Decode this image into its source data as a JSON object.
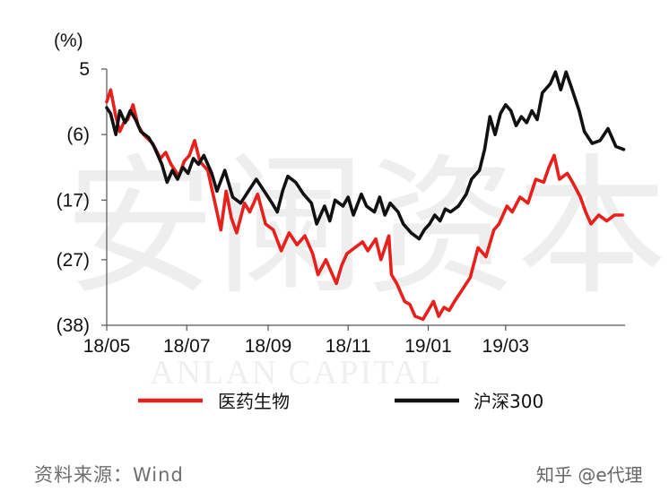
{
  "chart_data": {
    "type": "line",
    "unit_label": "(%)",
    "ylim": [
      -38,
      5
    ],
    "y_ticks": [
      5,
      -6,
      -17,
      -27,
      -38
    ],
    "y_tick_labels": [
      "5",
      "(6)",
      "(17)",
      "(27)",
      "(38)"
    ],
    "x_range": [
      "2018-05-01",
      "2019-05-31"
    ],
    "x_ticks": [
      "2018-05-01",
      "2018-07-01",
      "2018-09-01",
      "2018-11-01",
      "2019-01-01",
      "2019-03-01"
    ],
    "x_tick_labels": [
      "18/05",
      "18/07",
      "18/09",
      "18/11",
      "19/01",
      "19/03"
    ],
    "grid": false,
    "legend_position": "bottom",
    "series": [
      {
        "name": "医药生物",
        "color": "#e8201c",
        "points": [
          [
            "2018-05-01",
            -0.5
          ],
          [
            "2018-05-04",
            1.5
          ],
          [
            "2018-05-08",
            -3.0
          ],
          [
            "2018-05-11",
            -5.5
          ],
          [
            "2018-05-14",
            -4.0
          ],
          [
            "2018-05-17",
            -3.5
          ],
          [
            "2018-05-21",
            -1.0
          ],
          [
            "2018-05-25",
            -4.5
          ],
          [
            "2018-05-29",
            -6.0
          ],
          [
            "2018-06-05",
            -7.5
          ],
          [
            "2018-06-11",
            -10.0
          ],
          [
            "2018-06-15",
            -9.0
          ],
          [
            "2018-06-19",
            -11.0
          ],
          [
            "2018-06-25",
            -13.0
          ],
          [
            "2018-06-29",
            -10.5
          ],
          [
            "2018-07-03",
            -9.5
          ],
          [
            "2018-07-07",
            -7.0
          ],
          [
            "2018-07-11",
            -10.5
          ],
          [
            "2018-07-17",
            -12.0
          ],
          [
            "2018-07-23",
            -18.0
          ],
          [
            "2018-07-27",
            -22.0
          ],
          [
            "2018-07-31",
            -15.5
          ],
          [
            "2018-08-04",
            -20.0
          ],
          [
            "2018-08-08",
            -22.5
          ],
          [
            "2018-08-14",
            -17.5
          ],
          [
            "2018-08-18",
            -19.0
          ],
          [
            "2018-08-24",
            -16.0
          ],
          [
            "2018-08-30",
            -21.0
          ],
          [
            "2018-09-05",
            -22.0
          ],
          [
            "2018-09-11",
            -25.5
          ],
          [
            "2018-09-17",
            -22.5
          ],
          [
            "2018-09-23",
            -24.5
          ],
          [
            "2018-09-29",
            -23.0
          ],
          [
            "2018-10-05",
            -26.0
          ],
          [
            "2018-10-09",
            -29.5
          ],
          [
            "2018-10-15",
            -27.0
          ],
          [
            "2018-10-19",
            -29.0
          ],
          [
            "2018-10-23",
            -31.0
          ],
          [
            "2018-10-27",
            -28.0
          ],
          [
            "2018-10-31",
            -26.0
          ],
          [
            "2018-11-06",
            -25.0
          ],
          [
            "2018-11-12",
            -24.0
          ],
          [
            "2018-11-16",
            -25.5
          ],
          [
            "2018-11-22",
            -23.5
          ],
          [
            "2018-11-26",
            -27.0
          ],
          [
            "2018-12-02",
            -23.0
          ],
          [
            "2018-12-04",
            -29.5
          ],
          [
            "2018-12-08",
            -31.0
          ],
          [
            "2018-12-14",
            -34.0
          ],
          [
            "2018-12-18",
            -34.5
          ],
          [
            "2018-12-22",
            -36.5
          ],
          [
            "2018-12-28",
            -37.0
          ],
          [
            "2019-01-01",
            -35.5
          ],
          [
            "2019-01-05",
            -34.0
          ],
          [
            "2019-01-09",
            -36.5
          ],
          [
            "2019-01-13",
            -35.0
          ],
          [
            "2019-01-17",
            -35.5
          ],
          [
            "2019-01-21",
            -34.0
          ],
          [
            "2019-01-27",
            -32.0
          ],
          [
            "2019-02-02",
            -30.0
          ],
          [
            "2019-02-08",
            -25.0
          ],
          [
            "2019-02-14",
            -26.5
          ],
          [
            "2019-02-20",
            -22.0
          ],
          [
            "2019-02-24",
            -21.0
          ],
          [
            "2019-03-02",
            -18.0
          ],
          [
            "2019-03-06",
            -19.0
          ],
          [
            "2019-03-12",
            -16.5
          ],
          [
            "2019-03-18",
            -17.5
          ],
          [
            "2019-03-24",
            -13.5
          ],
          [
            "2019-03-30",
            -14.0
          ],
          [
            "2019-04-03",
            -11.5
          ],
          [
            "2019-04-07",
            -9.5
          ],
          [
            "2019-04-11",
            -13.5
          ],
          [
            "2019-04-17",
            -12.5
          ],
          [
            "2019-04-21",
            -14.0
          ],
          [
            "2019-04-27",
            -16.5
          ],
          [
            "2019-05-01",
            -19.0
          ],
          [
            "2019-05-05",
            -21.0
          ],
          [
            "2019-05-11",
            -19.5
          ],
          [
            "2019-05-17",
            -20.5
          ],
          [
            "2019-05-23",
            -19.5
          ],
          [
            "2019-05-29",
            -19.5
          ]
        ]
      },
      {
        "name": "沪深300",
        "color": "#111111",
        "points": [
          [
            "2018-05-01",
            -1.5
          ],
          [
            "2018-05-04",
            -2.5
          ],
          [
            "2018-05-08",
            -6.0
          ],
          [
            "2018-05-11",
            -2.0
          ],
          [
            "2018-05-15",
            -4.0
          ],
          [
            "2018-05-19",
            -2.0
          ],
          [
            "2018-05-23",
            -3.5
          ],
          [
            "2018-05-27",
            -5.5
          ],
          [
            "2018-06-02",
            -6.5
          ],
          [
            "2018-06-06",
            -8.0
          ],
          [
            "2018-06-12",
            -11.0
          ],
          [
            "2018-06-16",
            -14.0
          ],
          [
            "2018-06-20",
            -12.0
          ],
          [
            "2018-06-24",
            -13.5
          ],
          [
            "2018-06-28",
            -11.5
          ],
          [
            "2018-07-02",
            -12.5
          ],
          [
            "2018-07-06",
            -10.0
          ],
          [
            "2018-07-10",
            -11.0
          ],
          [
            "2018-07-14",
            -9.5
          ],
          [
            "2018-07-20",
            -12.5
          ],
          [
            "2018-07-24",
            -15.5
          ],
          [
            "2018-07-30",
            -12.0
          ],
          [
            "2018-08-05",
            -16.5
          ],
          [
            "2018-08-11",
            -17.5
          ],
          [
            "2018-08-17",
            -15.5
          ],
          [
            "2018-08-23",
            -13.5
          ],
          [
            "2018-08-29",
            -15.5
          ],
          [
            "2018-09-04",
            -17.5
          ],
          [
            "2018-09-08",
            -19.0
          ],
          [
            "2018-09-12",
            -15.5
          ],
          [
            "2018-09-16",
            -13.0
          ],
          [
            "2018-09-22",
            -14.0
          ],
          [
            "2018-09-28",
            -16.0
          ],
          [
            "2018-10-04",
            -17.5
          ],
          [
            "2018-10-08",
            -21.0
          ],
          [
            "2018-10-14",
            -18.0
          ],
          [
            "2018-10-18",
            -20.5
          ],
          [
            "2018-10-22",
            -17.0
          ],
          [
            "2018-10-28",
            -18.0
          ],
          [
            "2018-11-01",
            -16.5
          ],
          [
            "2018-11-05",
            -19.5
          ],
          [
            "2018-11-11",
            -16.0
          ],
          [
            "2018-11-15",
            -18.0
          ],
          [
            "2018-11-21",
            -19.0
          ],
          [
            "2018-11-25",
            -16.5
          ],
          [
            "2018-11-29",
            -19.5
          ],
          [
            "2018-12-03",
            -17.5
          ],
          [
            "2018-12-09",
            -19.0
          ],
          [
            "2018-12-13",
            -21.0
          ],
          [
            "2018-12-19",
            -22.5
          ],
          [
            "2018-12-25",
            -23.5
          ],
          [
            "2018-12-29",
            -22.0
          ],
          [
            "2019-01-02",
            -21.0
          ],
          [
            "2019-01-06",
            -19.5
          ],
          [
            "2019-01-10",
            -20.5
          ],
          [
            "2019-01-14",
            -18.5
          ],
          [
            "2019-01-18",
            -19.0
          ],
          [
            "2019-01-24",
            -18.0
          ],
          [
            "2019-01-30",
            -16.0
          ],
          [
            "2019-02-03",
            -13.5
          ],
          [
            "2019-02-09",
            -12.0
          ],
          [
            "2019-02-13",
            -8.5
          ],
          [
            "2019-02-17",
            -3.0
          ],
          [
            "2019-02-21",
            -6.0
          ],
          [
            "2019-02-25",
            -2.5
          ],
          [
            "2019-03-01",
            -1.0
          ],
          [
            "2019-03-05",
            -2.0
          ],
          [
            "2019-03-09",
            -4.5
          ],
          [
            "2019-03-13",
            -3.0
          ],
          [
            "2019-03-17",
            -4.0
          ],
          [
            "2019-03-21",
            -2.0
          ],
          [
            "2019-03-25",
            -3.5
          ],
          [
            "2019-03-29",
            1.0
          ],
          [
            "2019-04-04",
            2.5
          ],
          [
            "2019-04-08",
            4.5
          ],
          [
            "2019-04-12",
            1.5
          ],
          [
            "2019-04-16",
            4.5
          ],
          [
            "2019-04-20",
            2.0
          ],
          [
            "2019-04-26",
            -2.0
          ],
          [
            "2019-04-30",
            -5.5
          ],
          [
            "2019-05-06",
            -7.5
          ],
          [
            "2019-05-12",
            -7.0
          ],
          [
            "2019-05-18",
            -5.0
          ],
          [
            "2019-05-24",
            -8.0
          ],
          [
            "2019-05-30",
            -8.5
          ]
        ]
      }
    ]
  },
  "footer": {
    "source": "资料来源：Wind",
    "watermark": "知乎 @e代理"
  },
  "background_watermark": {
    "chinese": "安阑资本",
    "english": "ANLAN CAPITAL"
  }
}
